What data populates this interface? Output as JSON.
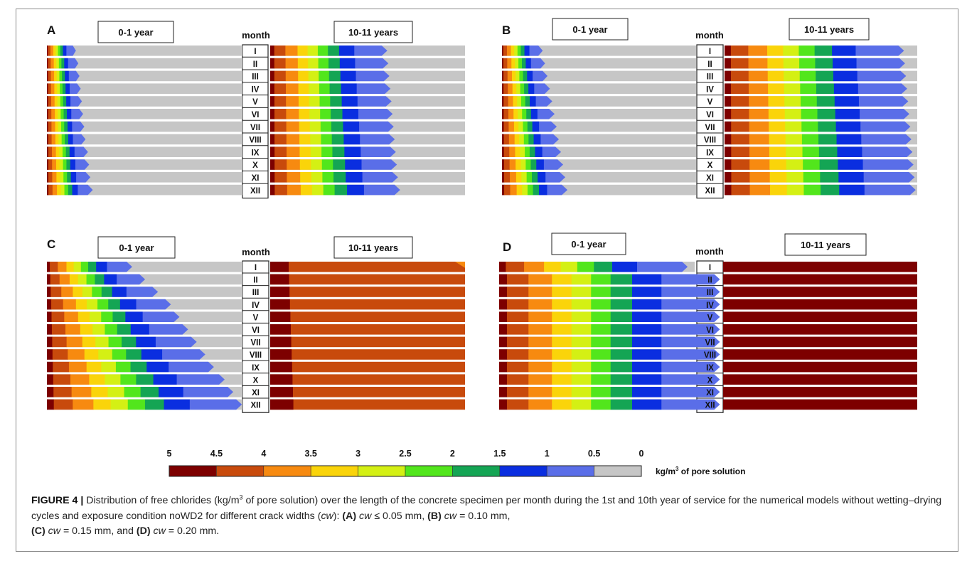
{
  "figure": {
    "panels": [
      {
        "letter": "A",
        "left_header": "0-1 year",
        "right_header": "10-11 years",
        "month_header": "month"
      },
      {
        "letter": "B",
        "left_header": "0-1 year",
        "right_header": "10-11 years",
        "month_header": "month"
      },
      {
        "letter": "C",
        "left_header": "0-1 year",
        "right_header": "10-11 years",
        "month_header": "month"
      },
      {
        "letter": "D",
        "left_header": "0-1 year",
        "right_header": "10-11 years",
        "month_header": "month"
      }
    ],
    "months": [
      "I",
      "II",
      "III",
      "IV",
      "V",
      "VI",
      "VII",
      "VIII",
      "IX",
      "X",
      "XI",
      "XII"
    ],
    "colorbar": {
      "ticks": [
        "5",
        "4.5",
        "4",
        "3.5",
        "3",
        "2.5",
        "2",
        "1.5",
        "1",
        "0.5",
        "0"
      ],
      "colors": [
        "#7d0000",
        "#c84a0c",
        "#f78a10",
        "#fad40a",
        "#d4f014",
        "#52e61c",
        "#14a554",
        "#0a2ee0",
        "#5a6ee8",
        "#c6c6c6"
      ],
      "unit_prefix": "kg/m",
      "unit_sup": "3",
      "unit_suffix": "of pore solution"
    },
    "caption": {
      "label": "FIGURE 4 |",
      "t1": " Distribution of free chlorides (kg/m",
      "t1_sup": "3",
      "t2": " of pore solution) over the length of the concrete specimen per month during the 1st and 10th year of service for the numerical models without wetting–drying cycles and exposure condition noWD2 for different crack widths (",
      "cw1": "cw",
      "t3": "): ",
      "la": "(A)",
      "cw2": "cw",
      "va": " ≤ 0.05 mm, ",
      "lb": "(B)",
      "cw3": "cw",
      "vb": " = 0.10 mm,",
      "lc": "(C)",
      "cw4": "cw",
      "vc": " = 0.15 mm, and ",
      "ld": "(D)",
      "cw5": "cw",
      "vd": " = 0.20 mm."
    }
  },
  "chart_data": [
    {
      "type": "heatmap",
      "panel": "A",
      "crack_width_mm": "≤ 0.05",
      "rows": [
        "I",
        "II",
        "III",
        "IV",
        "V",
        "VI",
        "VII",
        "VIII",
        "IX",
        "X",
        "XI",
        "XII"
      ],
      "contour_levels": [
        4.5,
        4,
        3.5,
        3,
        2.5,
        2,
        1.5,
        1,
        0.5
      ],
      "year_0_1_penetration_fraction": [
        0.12,
        0.13,
        0.135,
        0.14,
        0.145,
        0.15,
        0.155,
        0.16,
        0.17,
        0.175,
        0.18,
        0.19
      ],
      "year_10_11_penetration_fraction": [
        0.52,
        0.525,
        0.53,
        0.535,
        0.54,
        0.545,
        0.55,
        0.555,
        0.56,
        0.565,
        0.57,
        0.58
      ]
    },
    {
      "type": "heatmap",
      "panel": "B",
      "crack_width_mm": "0.10",
      "rows": [
        "I",
        "II",
        "III",
        "IV",
        "V",
        "VI",
        "VII",
        "VIII",
        "IX",
        "X",
        "XI",
        "XII"
      ],
      "contour_levels": [
        4.5,
        4,
        3.5,
        3,
        2.5,
        2,
        1.5,
        1,
        0.5
      ],
      "year_0_1_penetration_fraction": [
        0.17,
        0.18,
        0.19,
        0.2,
        0.21,
        0.22,
        0.23,
        0.24,
        0.25,
        0.26,
        0.27,
        0.28
      ],
      "year_10_11_penetration_fraction": [
        0.82,
        0.825,
        0.83,
        0.835,
        0.84,
        0.845,
        0.85,
        0.855,
        0.86,
        0.865,
        0.87,
        0.875
      ]
    },
    {
      "type": "heatmap",
      "panel": "C",
      "crack_width_mm": "0.15",
      "rows": [
        "I",
        "II",
        "III",
        "IV",
        "V",
        "VI",
        "VII",
        "VIII",
        "IX",
        "X",
        "XI",
        "XII"
      ],
      "contour_levels": [
        4.5,
        4,
        3.5,
        3,
        2.5,
        2,
        1.5,
        1,
        0.5
      ],
      "year_0_1_penetration_fraction": [
        0.37,
        0.43,
        0.49,
        0.55,
        0.59,
        0.63,
        0.67,
        0.71,
        0.75,
        0.8,
        0.84,
        0.88
      ],
      "year_10_11_surface_band_4_to_5": "full length in 4–4.5 band"
    },
    {
      "type": "heatmap",
      "panel": "D",
      "crack_width_mm": "0.20",
      "rows": [
        "I",
        "II",
        "III",
        "IV",
        "V",
        "VI",
        "VII",
        "VIII",
        "IX",
        "X",
        "XI",
        "XII"
      ],
      "contour_levels": [
        4.5,
        4,
        3.5,
        3,
        2.5,
        2,
        1.5,
        1,
        0.5
      ],
      "year_0_1_penetration_fraction": [
        0.85,
        1.0,
        1.0,
        1.0,
        1.0,
        1.0,
        1.0,
        1.0,
        1.0,
        1.0,
        1.0,
        1.0
      ],
      "year_10_11_surface_band_4_5_to_5": "full length"
    }
  ]
}
